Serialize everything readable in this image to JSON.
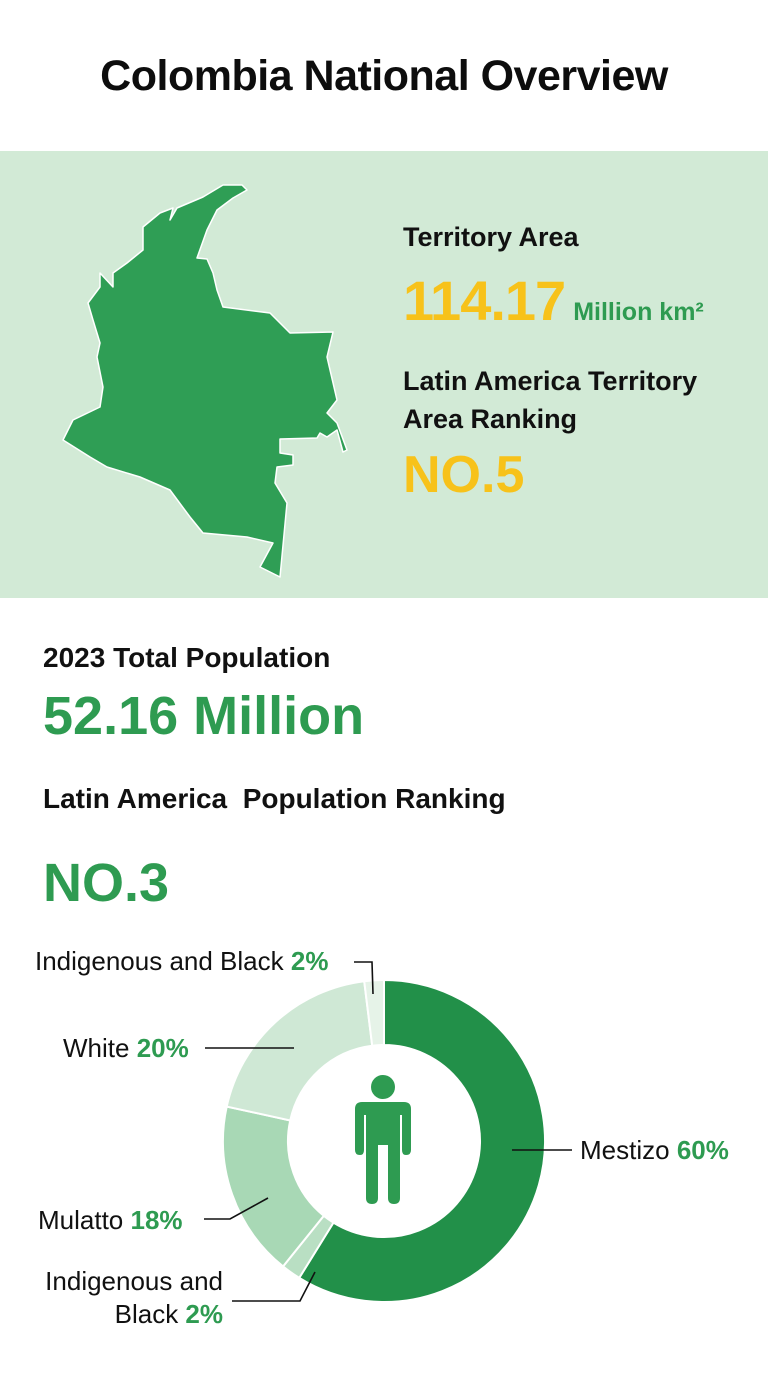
{
  "header": {
    "title": "Colombia National Overview"
  },
  "territory": {
    "area_label": "Territory Area",
    "area_value": "114.17",
    "area_unit": "Million km²",
    "ranking_label": "Latin America Territory Area Ranking",
    "ranking_value": "NO.5"
  },
  "population": {
    "label": "2023 Total Population",
    "value": "52.16 Million",
    "ranking_label": "Latin America  Population Ranking",
    "ranking_value": "NO.3"
  },
  "colors": {
    "accent_green": "#2e9b51",
    "accent_yellow": "#f7c21a",
    "band_bg": "#d2ead6",
    "map_fill": "#2f9e55"
  },
  "icons": {
    "center": "person-icon",
    "map": "colombia-map"
  },
  "chart_data": {
    "type": "pie",
    "subtype": "donut",
    "title": "",
    "categories": [
      "Mestizo",
      "Indigenous and Black",
      "Mulatto",
      "White",
      "Indigenous and Black"
    ],
    "values": [
      60,
      2,
      18,
      20,
      2
    ],
    "unit": "%",
    "colors": [
      "#229049",
      "#b9dfc3",
      "#a8d8b5",
      "#cfe8d5",
      "#e6f3e8"
    ],
    "labels": [
      {
        "name": "Mestizo",
        "pct": "60%"
      },
      {
        "name": "Indigenous and Black",
        "pct": "2%"
      },
      {
        "name": "Mulatto",
        "pct": "18%"
      },
      {
        "name": "White",
        "pct": "20%"
      },
      {
        "name": "Indigenous and Black",
        "pct": "2%"
      }
    ],
    "legend_position": "callouts"
  }
}
